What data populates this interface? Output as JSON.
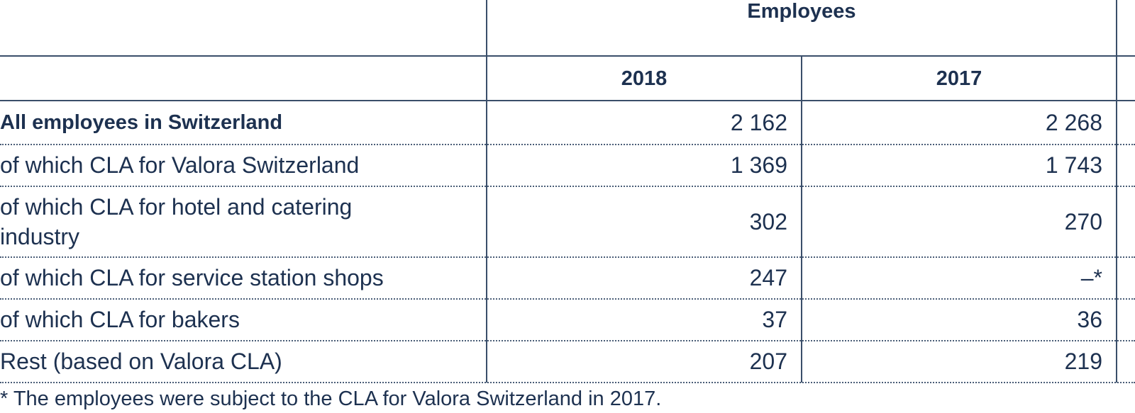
{
  "table": {
    "group_header": "Employees",
    "year_headers": [
      "2018",
      "2017"
    ],
    "rows": [
      {
        "label": "All employees in Switzerland",
        "v2018": "2 162",
        "v2017": "2 268",
        "bold": true
      },
      {
        "label": "of which CLA for Valora Switzerland",
        "v2018": "1 369",
        "v2017": "1 743"
      },
      {
        "label": "of which CLA for hotel and catering industry",
        "v2018": "302",
        "v2017": "270"
      },
      {
        "label": "of which CLA for service station shops",
        "v2018": "247",
        "v2017": "–*"
      },
      {
        "label": "of which CLA for bakers",
        "v2018": "37",
        "v2017": "36"
      },
      {
        "label": "Rest (based on Valora CLA)",
        "v2018": "207",
        "v2017": "219"
      }
    ],
    "footnote": "* The employees were subject to the CLA for Valora Switzerland in 2017."
  },
  "colors": {
    "text": "#1d3150",
    "rule": "#3a4e6a"
  }
}
